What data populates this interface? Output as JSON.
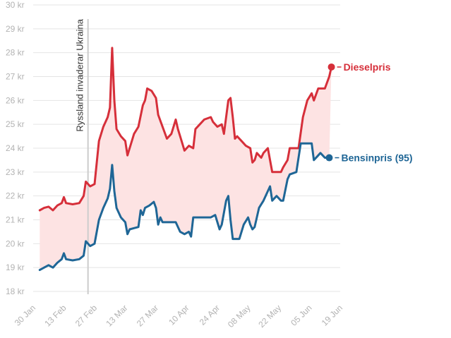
{
  "chart_data": {
    "type": "line",
    "currency_unit": "kr",
    "ylim": [
      18,
      30
    ],
    "yticks": [
      18,
      19,
      20,
      21,
      22,
      23,
      24,
      25,
      26,
      27,
      28,
      29,
      30
    ],
    "ytick_labels": [
      "18 kr",
      "19 kr",
      "20 kr",
      "21 kr",
      "22 kr",
      "23 kr",
      "24 kr",
      "25 kr",
      "26 kr",
      "27 kr",
      "28 kr",
      "29 kr",
      "30 kr"
    ],
    "xlim": [
      "2022-01-30",
      "2022-06-19"
    ],
    "xticks": [
      "2022-01-30",
      "2022-02-13",
      "2022-02-27",
      "2022-03-13",
      "2022-03-27",
      "2022-04-10",
      "2022-04-24",
      "2022-05-08",
      "2022-05-22",
      "2022-06-05",
      "2022-06-19"
    ],
    "xtick_labels": [
      "30 Jan",
      "13 Feb",
      "27 Feb",
      "13 Mar",
      "27 Mar",
      "10 Apr",
      "24 Apr",
      "08 May",
      "22 May",
      "05 Jun",
      "19 Jun"
    ],
    "grid": true,
    "shaded_between_series": true,
    "annotation": {
      "date": "2022-02-24",
      "text": "Ryssland invaderar Ukraina"
    },
    "colors": {
      "diesel": "#d62f3a",
      "bensin": "#1f6696",
      "fill": "#fde3e3",
      "grid": "#e4e4e4"
    },
    "series": [
      {
        "name": "Dieselpris",
        "key": "diesel",
        "points": [
          [
            "2022-02-02",
            21.4
          ],
          [
            "2022-02-04",
            21.5
          ],
          [
            "2022-02-06",
            21.55
          ],
          [
            "2022-02-08",
            21.4
          ],
          [
            "2022-02-10",
            21.6
          ],
          [
            "2022-02-12",
            21.7
          ],
          [
            "2022-02-13",
            21.95
          ],
          [
            "2022-02-14",
            21.7
          ],
          [
            "2022-02-17",
            21.65
          ],
          [
            "2022-02-20",
            21.7
          ],
          [
            "2022-02-22",
            22.0
          ],
          [
            "2022-02-23",
            22.6
          ],
          [
            "2022-02-25",
            22.4
          ],
          [
            "2022-02-27",
            22.5
          ],
          [
            "2022-03-01",
            24.3
          ],
          [
            "2022-03-03",
            24.9
          ],
          [
            "2022-03-05",
            25.3
          ],
          [
            "2022-03-06",
            25.7
          ],
          [
            "2022-03-07",
            28.2
          ],
          [
            "2022-03-08",
            26.0
          ],
          [
            "2022-03-09",
            24.8
          ],
          [
            "2022-03-11",
            24.5
          ],
          [
            "2022-03-13",
            24.3
          ],
          [
            "2022-03-14",
            23.7
          ],
          [
            "2022-03-15",
            24.0
          ],
          [
            "2022-03-17",
            24.6
          ],
          [
            "2022-03-19",
            24.9
          ],
          [
            "2022-03-21",
            25.8
          ],
          [
            "2022-03-22",
            26.0
          ],
          [
            "2022-03-23",
            26.5
          ],
          [
            "2022-03-25",
            26.4
          ],
          [
            "2022-03-27",
            26.1
          ],
          [
            "2022-03-28",
            25.4
          ],
          [
            "2022-03-30",
            24.9
          ],
          [
            "2022-04-01",
            24.4
          ],
          [
            "2022-04-03",
            24.6
          ],
          [
            "2022-04-05",
            25.2
          ],
          [
            "2022-04-06",
            24.8
          ],
          [
            "2022-04-08",
            24.2
          ],
          [
            "2022-04-09",
            23.9
          ],
          [
            "2022-04-11",
            24.1
          ],
          [
            "2022-04-13",
            24.0
          ],
          [
            "2022-04-14",
            24.8
          ],
          [
            "2022-04-16",
            25.0
          ],
          [
            "2022-04-18",
            25.2
          ],
          [
            "2022-04-21",
            25.3
          ],
          [
            "2022-04-22",
            25.1
          ],
          [
            "2022-04-24",
            24.9
          ],
          [
            "2022-04-26",
            25.0
          ],
          [
            "2022-04-27",
            24.6
          ],
          [
            "2022-04-29",
            26.0
          ],
          [
            "2022-04-30",
            26.1
          ],
          [
            "2022-05-01",
            25.3
          ],
          [
            "2022-05-02",
            24.4
          ],
          [
            "2022-05-03",
            24.5
          ],
          [
            "2022-05-05",
            24.3
          ],
          [
            "2022-05-07",
            24.1
          ],
          [
            "2022-05-09",
            24.0
          ],
          [
            "2022-05-10",
            23.4
          ],
          [
            "2022-05-11",
            23.5
          ],
          [
            "2022-05-12",
            23.8
          ],
          [
            "2022-05-14",
            23.6
          ],
          [
            "2022-05-15",
            23.8
          ],
          [
            "2022-05-17",
            24.0
          ],
          [
            "2022-05-19",
            23.0
          ],
          [
            "2022-05-23",
            23.0
          ],
          [
            "2022-05-24",
            23.2
          ],
          [
            "2022-05-26",
            23.5
          ],
          [
            "2022-05-27",
            24.0
          ],
          [
            "2022-05-31",
            24.0
          ],
          [
            "2022-06-02",
            25.3
          ],
          [
            "2022-06-04",
            26.0
          ],
          [
            "2022-06-06",
            26.3
          ],
          [
            "2022-06-07",
            26.0
          ],
          [
            "2022-06-09",
            26.5
          ],
          [
            "2022-06-12",
            26.5
          ],
          [
            "2022-06-14",
            27.0
          ],
          [
            "2022-06-15",
            27.4
          ]
        ]
      },
      {
        "name": "Bensinpris (95)",
        "key": "bensin",
        "points": [
          [
            "2022-02-02",
            18.9
          ],
          [
            "2022-02-04",
            19.0
          ],
          [
            "2022-02-06",
            19.1
          ],
          [
            "2022-02-08",
            19.0
          ],
          [
            "2022-02-10",
            19.2
          ],
          [
            "2022-02-12",
            19.35
          ],
          [
            "2022-02-13",
            19.6
          ],
          [
            "2022-02-14",
            19.35
          ],
          [
            "2022-02-17",
            19.3
          ],
          [
            "2022-02-20",
            19.35
          ],
          [
            "2022-02-22",
            19.5
          ],
          [
            "2022-02-23",
            20.1
          ],
          [
            "2022-02-25",
            19.9
          ],
          [
            "2022-02-27",
            20.0
          ],
          [
            "2022-03-01",
            21.0
          ],
          [
            "2022-03-03",
            21.5
          ],
          [
            "2022-03-05",
            21.9
          ],
          [
            "2022-03-06",
            22.3
          ],
          [
            "2022-03-07",
            23.3
          ],
          [
            "2022-03-08",
            22.2
          ],
          [
            "2022-03-09",
            21.5
          ],
          [
            "2022-03-11",
            21.1
          ],
          [
            "2022-03-13",
            20.9
          ],
          [
            "2022-03-14",
            20.4
          ],
          [
            "2022-03-15",
            20.6
          ],
          [
            "2022-03-17",
            20.65
          ],
          [
            "2022-03-19",
            20.7
          ],
          [
            "2022-03-20",
            21.4
          ],
          [
            "2022-03-21",
            21.2
          ],
          [
            "2022-03-22",
            21.5
          ],
          [
            "2022-03-24",
            21.6
          ],
          [
            "2022-03-26",
            21.75
          ],
          [
            "2022-03-27",
            21.5
          ],
          [
            "2022-03-28",
            20.8
          ],
          [
            "2022-03-29",
            21.1
          ],
          [
            "2022-03-30",
            20.9
          ],
          [
            "2022-04-05",
            20.9
          ],
          [
            "2022-04-07",
            20.5
          ],
          [
            "2022-04-09",
            20.4
          ],
          [
            "2022-04-11",
            20.5
          ],
          [
            "2022-04-12",
            20.3
          ],
          [
            "2022-04-13",
            21.1
          ],
          [
            "2022-04-21",
            21.1
          ],
          [
            "2022-04-23",
            21.2
          ],
          [
            "2022-04-25",
            20.6
          ],
          [
            "2022-04-26",
            20.8
          ],
          [
            "2022-04-28",
            21.8
          ],
          [
            "2022-04-29",
            22.0
          ],
          [
            "2022-04-30",
            21.0
          ],
          [
            "2022-05-01",
            20.2
          ],
          [
            "2022-05-04",
            20.2
          ],
          [
            "2022-05-06",
            20.8
          ],
          [
            "2022-05-08",
            21.1
          ],
          [
            "2022-05-09",
            20.8
          ],
          [
            "2022-05-10",
            20.6
          ],
          [
            "2022-05-11",
            20.7
          ],
          [
            "2022-05-13",
            21.5
          ],
          [
            "2022-05-15",
            21.8
          ],
          [
            "2022-05-18",
            22.4
          ],
          [
            "2022-05-19",
            21.8
          ],
          [
            "2022-05-21",
            22.0
          ],
          [
            "2022-05-23",
            21.8
          ],
          [
            "2022-05-24",
            21.8
          ],
          [
            "2022-05-26",
            22.7
          ],
          [
            "2022-05-27",
            22.9
          ],
          [
            "2022-05-30",
            23.0
          ],
          [
            "2022-06-01",
            24.2
          ],
          [
            "2022-06-06",
            24.2
          ],
          [
            "2022-06-07",
            23.5
          ],
          [
            "2022-06-09",
            23.7
          ],
          [
            "2022-06-10",
            23.8
          ],
          [
            "2022-06-12",
            23.6
          ],
          [
            "2022-06-14",
            23.6
          ]
        ]
      }
    ]
  }
}
